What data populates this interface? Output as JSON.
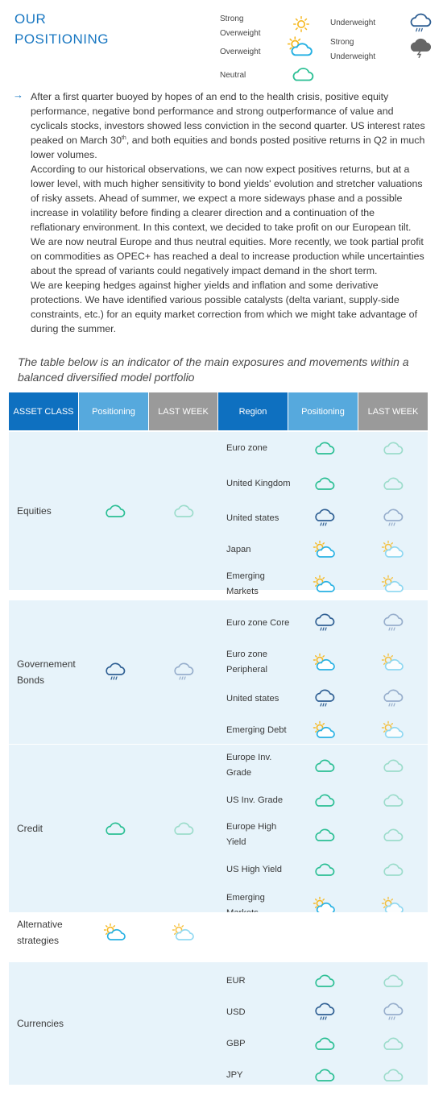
{
  "header": {
    "title_line1": "OUR",
    "title_line2": "POSITIONING"
  },
  "legend": {
    "strong_overweight": "Strong Overweight",
    "overweight": "Overweight",
    "neutral": "Neutral",
    "underweight": "Underweight",
    "strong_underweight": "Strong Underweight"
  },
  "commentary": {
    "p1_a": "After a first quarter buoyed by hopes of an end to the health crisis, positive equity performance, negative bond performance and strong outperformance of value and cyclicals stocks, investors showed less conviction in the second quarter. US interest rates peaked on March 30",
    "p1_sup": "th",
    "p1_b": ", and both equities and bonds posted positive returns in Q2 in much lower volumes.",
    "p2": "According to our historical observations, we can now expect positives returns, but at a lower level, with much higher sensitivity to bond yields' evolution and stretcher valuations of risky assets. Ahead of summer, we expect a more sideways phase and a possible increase in volatility before finding a clearer direction and a continuation of the reflationary environment. In this context, we decided to take profit on our European tilt. We are now neutral Europe and thus neutral equities. More recently, we took partial profit on commodities as OPEC+ has reached a deal to increase production while uncertainties about the spread of variants could negatively impact demand in the short term.",
    "p3": "We are keeping hedges against higher yields and inflation and some derivative protections. We have identified various possible catalysts (delta variant, supply-side constraints, etc.) for an equity market correction from which we might take advantage of during the summer."
  },
  "caption": "The table below is an indicator of the main exposures and movements within a balanced diversified model portfolio",
  "table": {
    "headers": {
      "asset_class": "ASSET CLASS",
      "positioning": "Positioning",
      "last_week": "LAST WEEK",
      "region": "Region",
      "positioning2": "Positioning",
      "last_week2": "LAST WEEK"
    },
    "icon_meaning": {
      "sun": "strong overweight",
      "suncloud": "overweight",
      "cloud": "neutral",
      "rain": "underweight",
      "storm": "strong underweight"
    },
    "colors": {
      "neutral_cloud": "#2bbf94",
      "rain_cloud": "#2f5f93",
      "sun": "#f6b820",
      "sun_cloud": "#27b1e3",
      "light_band": "#e7f3fa",
      "header_blue": "#0e70c0",
      "header_light_blue": "#56a9dd",
      "header_gray": "#9a9a9a",
      "title_blue": "#1a78c2"
    },
    "groups": [
      {
        "asset": "Equities",
        "positioning": "cloud",
        "last_week": "cloud",
        "rows": [
          {
            "region": "Euro zone",
            "positioning": "cloud",
            "last_week": "cloud"
          },
          {
            "region": "United Kingdom",
            "positioning": "cloud",
            "last_week": "cloud"
          },
          {
            "region": "United states",
            "positioning": "rain",
            "last_week": "rain"
          },
          {
            "region": "Japan",
            "positioning": "suncloud",
            "last_week": "suncloud"
          },
          {
            "region": "Emerging Markets",
            "positioning": "suncloud",
            "last_week": "suncloud"
          }
        ]
      },
      {
        "asset": "Governement Bonds",
        "positioning": "rain",
        "last_week": "rain",
        "rows": [
          {
            "region": "Euro zone Core",
            "positioning": "rain",
            "last_week": "rain"
          },
          {
            "region": "Euro zone Peripheral",
            "positioning": "suncloud",
            "last_week": "suncloud"
          },
          {
            "region": "United states",
            "positioning": "rain",
            "last_week": "rain"
          },
          {
            "region": "Emerging Debt",
            "positioning": "suncloud",
            "last_week": "suncloud"
          }
        ]
      },
      {
        "asset": "Credit",
        "positioning": "cloud",
        "last_week": "cloud",
        "rows": [
          {
            "region": "Europe Inv. Grade",
            "positioning": "cloud",
            "last_week": "cloud"
          },
          {
            "region": "US Inv. Grade",
            "positioning": "cloud",
            "last_week": "cloud"
          },
          {
            "region": "Europe High Yield",
            "positioning": "cloud",
            "last_week": "cloud"
          },
          {
            "region": "US High Yield",
            "positioning": "cloud",
            "last_week": "cloud"
          },
          {
            "region": "Emerging Markets",
            "positioning": "suncloud",
            "last_week": "suncloud"
          }
        ]
      },
      {
        "asset": "Alternative strategies",
        "positioning": "suncloud",
        "last_week": "suncloud",
        "rows": []
      },
      {
        "asset": "Currencies",
        "positioning": "",
        "last_week": "",
        "rows": [
          {
            "region": "EUR",
            "positioning": "cloud",
            "last_week": "cloud"
          },
          {
            "region": "USD",
            "positioning": "rain",
            "last_week": "rain"
          },
          {
            "region": "GBP",
            "positioning": "cloud",
            "last_week": "cloud"
          },
          {
            "region": "JPY",
            "positioning": "cloud",
            "last_week": "cloud"
          }
        ]
      }
    ]
  }
}
